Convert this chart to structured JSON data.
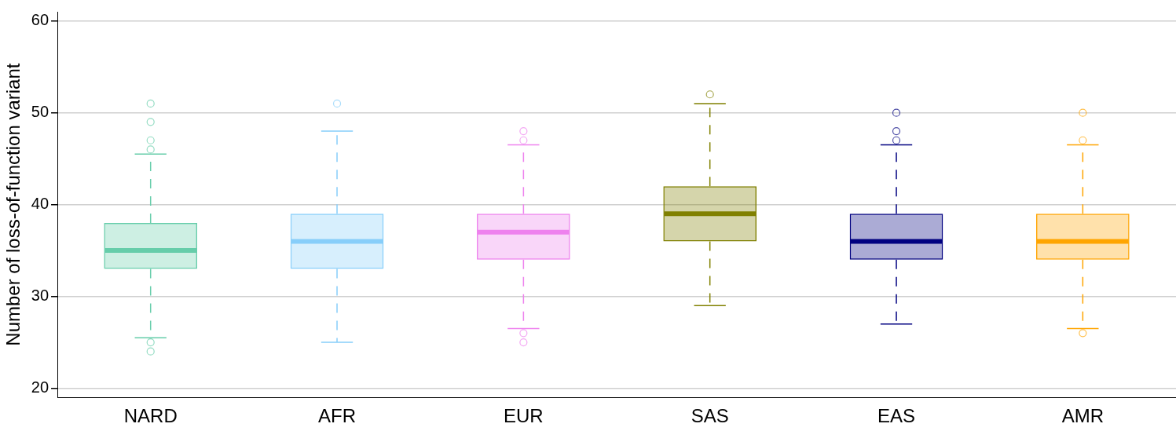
{
  "chart_data": {
    "type": "box",
    "ylabel": "Number of loss-of-function variant",
    "categories": [
      "NARD",
      "AFR",
      "EUR",
      "SAS",
      "EAS",
      "AMR"
    ],
    "colors": [
      "#66cdaa",
      "#87cefa",
      "#ee82ee",
      "#808000",
      "#000080",
      "#ffa500"
    ],
    "boxes": [
      {
        "low": 25.5,
        "q1": 33,
        "median": 35,
        "q3": 38,
        "high": 45.5,
        "outliers": [
          51,
          49,
          47,
          46,
          25,
          24
        ]
      },
      {
        "low": 25,
        "q1": 33,
        "median": 36,
        "q3": 39,
        "high": 48,
        "outliers": [
          51
        ]
      },
      {
        "low": 26.5,
        "q1": 34,
        "median": 37,
        "q3": 39,
        "high": 46.5,
        "outliers": [
          48,
          47,
          26,
          25
        ]
      },
      {
        "low": 29,
        "q1": 36,
        "median": 39,
        "q3": 42,
        "high": 51,
        "outliers": [
          52
        ]
      },
      {
        "low": 27,
        "q1": 34,
        "median": 36,
        "q3": 39,
        "high": 46.5,
        "outliers": [
          50,
          48,
          47
        ]
      },
      {
        "low": 26.5,
        "q1": 34,
        "median": 36,
        "q3": 39,
        "high": 46.5,
        "outliers": [
          50,
          47,
          26
        ]
      }
    ],
    "ylim": [
      19,
      61
    ],
    "yticks": [
      20,
      30,
      40,
      50,
      60
    ],
    "grid": "y",
    "legend": false,
    "line_style": "dashed",
    "marker": "circle"
  }
}
